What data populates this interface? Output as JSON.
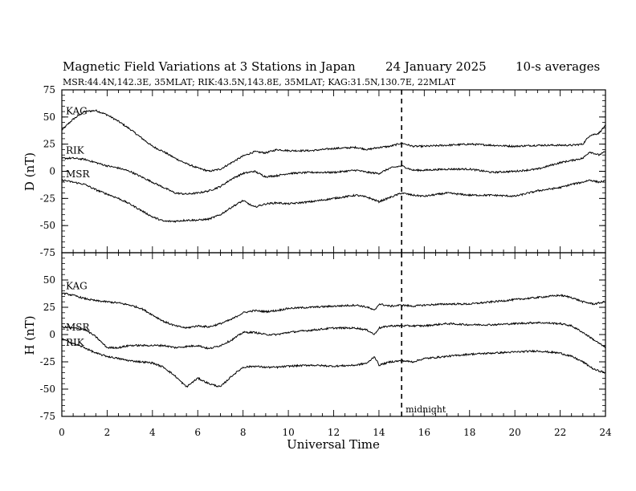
{
  "chart_data": [
    {
      "type": "line",
      "panel": "top",
      "title": "Magnetic Field Variations at 3 Stations in Japan",
      "title_date": "24 January  2025",
      "title_note": "10-s averages",
      "subtitle": "MSR:44.4N,142.3E, 35MLAT;  RIK:43.5N,143.8E, 35MLAT;  KAG:31.5N,130.7E, 22MLAT",
      "ylabel": "D (nT)",
      "xlim": [
        0,
        24
      ],
      "ylim": [
        -75,
        75
      ],
      "yticks": [
        "75",
        "50",
        "25",
        "0",
        "-25",
        "-50",
        "-75"
      ],
      "marker": {
        "x": 15,
        "label": ""
      },
      "series": [
        {
          "name": "KAG",
          "x": [
            0,
            0.5,
            1,
            1.5,
            2,
            2.5,
            3,
            3.5,
            4,
            4.5,
            5,
            5.5,
            6,
            6.5,
            7,
            7.5,
            8,
            8.5,
            9,
            9.5,
            10,
            11,
            12,
            13,
            13.5,
            14,
            14.5,
            15,
            15.5,
            16,
            17,
            18,
            19,
            20,
            21,
            22,
            22.5,
            23,
            23.3,
            23.7,
            24
          ],
          "values": [
            38,
            48,
            55,
            56,
            52,
            46,
            39,
            31,
            23,
            18,
            12,
            7,
            3,
            0,
            2,
            8,
            14,
            18,
            17,
            20,
            19,
            19,
            21,
            22,
            20,
            22,
            23,
            26,
            23,
            23,
            24,
            25,
            24,
            23,
            24,
            24,
            24,
            25,
            33,
            35,
            42
          ]
        },
        {
          "name": "RIK",
          "x": [
            0,
            0.5,
            1,
            1.5,
            2,
            2.5,
            3,
            3.5,
            4,
            4.5,
            5,
            5.5,
            6,
            6.5,
            7,
            7.5,
            8,
            8.5,
            9,
            9.5,
            10,
            11,
            12,
            13,
            13.5,
            14,
            14.5,
            15,
            15.5,
            16,
            17,
            18,
            19,
            20,
            21,
            22,
            22.5,
            23,
            23.3,
            23.7,
            24
          ],
          "values": [
            12,
            12,
            11,
            8,
            5,
            3,
            0,
            -5,
            -10,
            -15,
            -20,
            -21,
            -20,
            -18,
            -14,
            -7,
            -2,
            0,
            -5,
            -4,
            -2,
            -1,
            -1,
            1,
            -1,
            -2,
            3,
            5,
            1,
            1,
            2,
            2,
            -1,
            0,
            2,
            8,
            10,
            12,
            18,
            15,
            18
          ]
        },
        {
          "name": "MSR",
          "x": [
            0,
            0.5,
            1,
            1.5,
            2,
            2.5,
            3,
            3.5,
            4,
            4.5,
            5,
            5.5,
            6,
            6.5,
            7,
            7.5,
            8,
            8.5,
            9,
            9.5,
            10,
            11,
            12,
            13,
            13.5,
            14,
            14.5,
            15,
            15.5,
            16,
            17,
            18,
            19,
            20,
            21,
            22,
            22.5,
            23,
            23.3,
            23.7,
            24
          ],
          "values": [
            -8,
            -10,
            -12,
            -17,
            -21,
            -25,
            -30,
            -36,
            -42,
            -46,
            -46,
            -45,
            -45,
            -44,
            -40,
            -33,
            -27,
            -33,
            -30,
            -29,
            -30,
            -28,
            -25,
            -22,
            -24,
            -28,
            -24,
            -20,
            -22,
            -23,
            -20,
            -22,
            -22,
            -23,
            -18,
            -15,
            -12,
            -10,
            -8,
            -10,
            -9
          ]
        }
      ]
    },
    {
      "type": "line",
      "panel": "bottom",
      "ylabel": "H (nT)",
      "xlabel": "Universal Time",
      "xlim": [
        0,
        24
      ],
      "ylim": [
        -75,
        75
      ],
      "yticks": [
        "50",
        "25",
        "0",
        "-25",
        "-50",
        "-75"
      ],
      "xticks": [
        "0",
        "2",
        "4",
        "6",
        "8",
        "10",
        "12",
        "14",
        "16",
        "18",
        "20",
        "22",
        "24"
      ],
      "marker": {
        "x": 15,
        "label": "midnight"
      },
      "series": [
        {
          "name": "KAG",
          "x": [
            0,
            0.5,
            1,
            1.5,
            2,
            2.5,
            3,
            3.5,
            4,
            4.5,
            5,
            5.5,
            6,
            6.5,
            7,
            7.5,
            8,
            8.5,
            9,
            9.5,
            10,
            11,
            12,
            13,
            13.5,
            13.8,
            14,
            14.5,
            15,
            15.5,
            16,
            17,
            18,
            19,
            20,
            21,
            22,
            22.5,
            23,
            23.5,
            24
          ],
          "values": [
            38,
            36,
            33,
            31,
            30,
            29,
            27,
            24,
            18,
            12,
            8,
            6,
            8,
            7,
            10,
            14,
            20,
            22,
            21,
            22,
            24,
            25,
            26,
            27,
            25,
            22,
            28,
            26,
            27,
            26,
            27,
            28,
            28,
            30,
            32,
            34,
            36,
            34,
            30,
            28,
            30
          ]
        },
        {
          "name": "MSR",
          "x": [
            0,
            0.5,
            1,
            1.5,
            2,
            2.5,
            3,
            3.5,
            4,
            4.5,
            5,
            5.5,
            6,
            6.5,
            7,
            7.5,
            8,
            8.5,
            9,
            9.5,
            10,
            11,
            12,
            13,
            13.5,
            13.8,
            14,
            14.5,
            15,
            15.5,
            16,
            17,
            18,
            19,
            20,
            21,
            22,
            22.5,
            23,
            23.5,
            24
          ],
          "values": [
            7,
            6,
            5,
            -2,
            -12,
            -12,
            -10,
            -10,
            -10,
            -10,
            -12,
            -11,
            -10,
            -13,
            -10,
            -5,
            2,
            2,
            0,
            0,
            2,
            4,
            6,
            6,
            4,
            0,
            6,
            8,
            8,
            8,
            8,
            10,
            9,
            9,
            10,
            11,
            10,
            8,
            2,
            -5,
            -12
          ]
        },
        {
          "name": "RIK",
          "x": [
            0,
            0.5,
            1,
            1.5,
            2,
            2.5,
            3,
            3.5,
            4,
            4.5,
            5,
            5.5,
            6,
            6.5,
            7,
            7.5,
            8,
            8.5,
            9,
            9.5,
            10,
            11,
            12,
            13,
            13.5,
            13.8,
            14,
            14.5,
            15,
            15.5,
            16,
            17,
            18,
            19,
            20,
            21,
            22,
            22.5,
            23,
            23.5,
            24
          ],
          "values": [
            -4,
            -8,
            -12,
            -17,
            -20,
            -22,
            -24,
            -25,
            -26,
            -30,
            -38,
            -48,
            -40,
            -45,
            -48,
            -38,
            -30,
            -29,
            -30,
            -30,
            -29,
            -28,
            -29,
            -28,
            -26,
            -20,
            -28,
            -25,
            -24,
            -25,
            -22,
            -20,
            -18,
            -17,
            -16,
            -15,
            -17,
            -20,
            -25,
            -32,
            -35
          ]
        }
      ]
    }
  ]
}
